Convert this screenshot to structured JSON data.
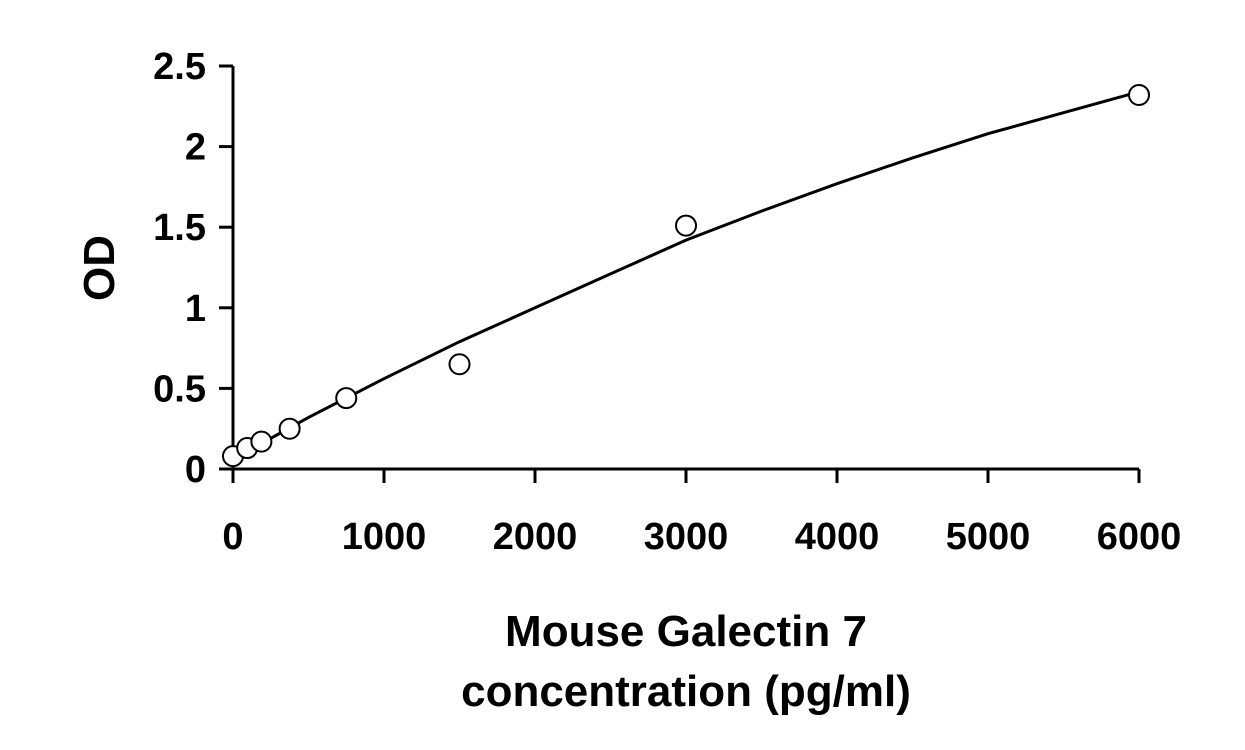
{
  "chart_data": {
    "type": "scatter",
    "title": "",
    "xlabel_lines": [
      "Mouse Galectin 7",
      "concentration (pg/ml)"
    ],
    "ylabel": "OD",
    "xlim": [
      0,
      6000
    ],
    "ylim": [
      0,
      2.5
    ],
    "xticks": [
      0,
      1000,
      2000,
      3000,
      4000,
      5000,
      6000
    ],
    "yticks": [
      0,
      0.5,
      1,
      1.5,
      2,
      2.5
    ],
    "ytick_labels": [
      "0",
      "0.5",
      "1",
      "1.5",
      "2",
      "2.5"
    ],
    "grid": false,
    "legend": "none",
    "series": [
      {
        "points": [
          {
            "x": 0,
            "y": 0.08
          },
          {
            "x": 94,
            "y": 0.13
          },
          {
            "x": 188,
            "y": 0.17
          },
          {
            "x": 375,
            "y": 0.25
          },
          {
            "x": 750,
            "y": 0.44
          },
          {
            "x": 1500,
            "y": 0.65
          },
          {
            "x": 3000,
            "y": 1.51
          },
          {
            "x": 6000,
            "y": 2.32
          }
        ]
      }
    ],
    "fit_curve": {
      "x": [
        0,
        500,
        1000,
        1500,
        2000,
        2500,
        3000,
        3500,
        4000,
        4500,
        5000,
        5500,
        6000
      ],
      "y": [
        0.06,
        0.32,
        0.56,
        0.79,
        1.0,
        1.21,
        1.42,
        1.6,
        1.77,
        1.93,
        2.08,
        2.21,
        2.34
      ]
    }
  }
}
